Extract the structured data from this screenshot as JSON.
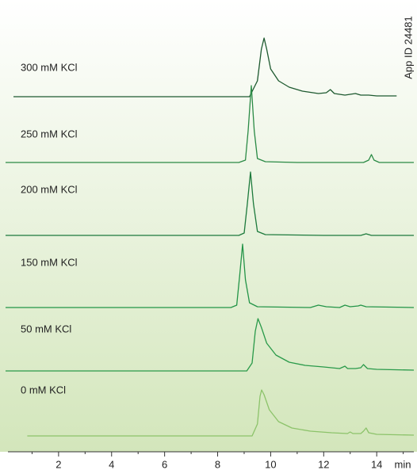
{
  "chart_data": {
    "type": "line",
    "annotation": "App ID 24481",
    "xlabel": "min",
    "xlim": [
      0,
      15.4
    ],
    "xticks": [
      2,
      4,
      6,
      8,
      10,
      12,
      14
    ],
    "xminorticks": [
      1,
      3,
      5,
      7,
      9,
      11,
      13,
      15
    ],
    "series": [
      {
        "name": "300 mM KCl",
        "color": "#1e5a30",
        "x": [
          0.3,
          8,
          9.2,
          9.5,
          9.65,
          9.75,
          9.85,
          10.0,
          10.3,
          10.7,
          11.2,
          11.8,
          12.1,
          12.25,
          12.4,
          12.8,
          13.0,
          13.2,
          13.4,
          13.7,
          14.0,
          14.75
        ],
        "values": [
          0,
          0,
          0,
          20,
          60,
          74,
          60,
          35,
          20,
          12,
          7,
          4,
          5,
          9,
          4,
          2,
          3,
          4,
          2,
          2,
          1,
          1
        ]
      },
      {
        "name": "250 mM KCl",
        "color": "#2a8a45",
        "x": [
          0,
          8.8,
          9.05,
          9.15,
          9.27,
          9.38,
          9.5,
          9.8,
          11,
          13.5,
          13.7,
          13.8,
          13.9,
          14.1,
          15.4
        ],
        "values": [
          0,
          0,
          3,
          40,
          97,
          40,
          5,
          1,
          0,
          0,
          3,
          10,
          3,
          0,
          0
        ]
      },
      {
        "name": "200 mM KCl",
        "color": "#1d7a3c",
        "x": [
          0,
          8.8,
          9.0,
          9.12,
          9.24,
          9.35,
          9.5,
          9.8,
          12,
          13.4,
          13.6,
          13.8,
          15.4
        ],
        "values": [
          0,
          0,
          3,
          40,
          80,
          40,
          5,
          1,
          0,
          0,
          2,
          0,
          0
        ]
      },
      {
        "name": "150 mM KCl",
        "color": "#239447",
        "x": [
          0,
          8.5,
          8.72,
          8.83,
          8.94,
          9.05,
          9.2,
          9.5,
          11.5,
          11.8,
          12.1,
          12.6,
          12.8,
          13.0,
          13.3,
          13.4,
          13.6,
          15.4
        ],
        "values": [
          0,
          0,
          3,
          40,
          80,
          35,
          6,
          1,
          0,
          3,
          1,
          0,
          3,
          1,
          2,
          3,
          1,
          0
        ]
      },
      {
        "name": "50 mM KCl",
        "color": "#2a9a4a",
        "x": [
          0,
          9.1,
          9.3,
          9.42,
          9.52,
          9.65,
          9.85,
          10.2,
          10.7,
          11.3,
          12,
          12.6,
          12.8,
          12.9,
          13.2,
          13.4,
          13.5,
          13.65,
          14,
          15.4
        ],
        "values": [
          0,
          0,
          10,
          50,
          66,
          55,
          35,
          20,
          11,
          7,
          5,
          3,
          6,
          3,
          3,
          4,
          8,
          3,
          2,
          1
        ]
      },
      {
        "name": "0 mM KCl",
        "color": "#8cc36a",
        "x": [
          0.82,
          9.3,
          9.5,
          9.6,
          9.66,
          9.75,
          9.95,
          10.3,
          10.8,
          11.5,
          12.3,
          12.9,
          13.0,
          13.1,
          13.4,
          13.5,
          13.6,
          13.7,
          14,
          15.4
        ],
        "values": [
          0,
          0,
          15,
          50,
          58,
          52,
          33,
          18,
          10,
          6,
          4,
          3,
          5,
          3,
          3,
          6,
          10,
          4,
          2,
          1
        ]
      }
    ]
  }
}
